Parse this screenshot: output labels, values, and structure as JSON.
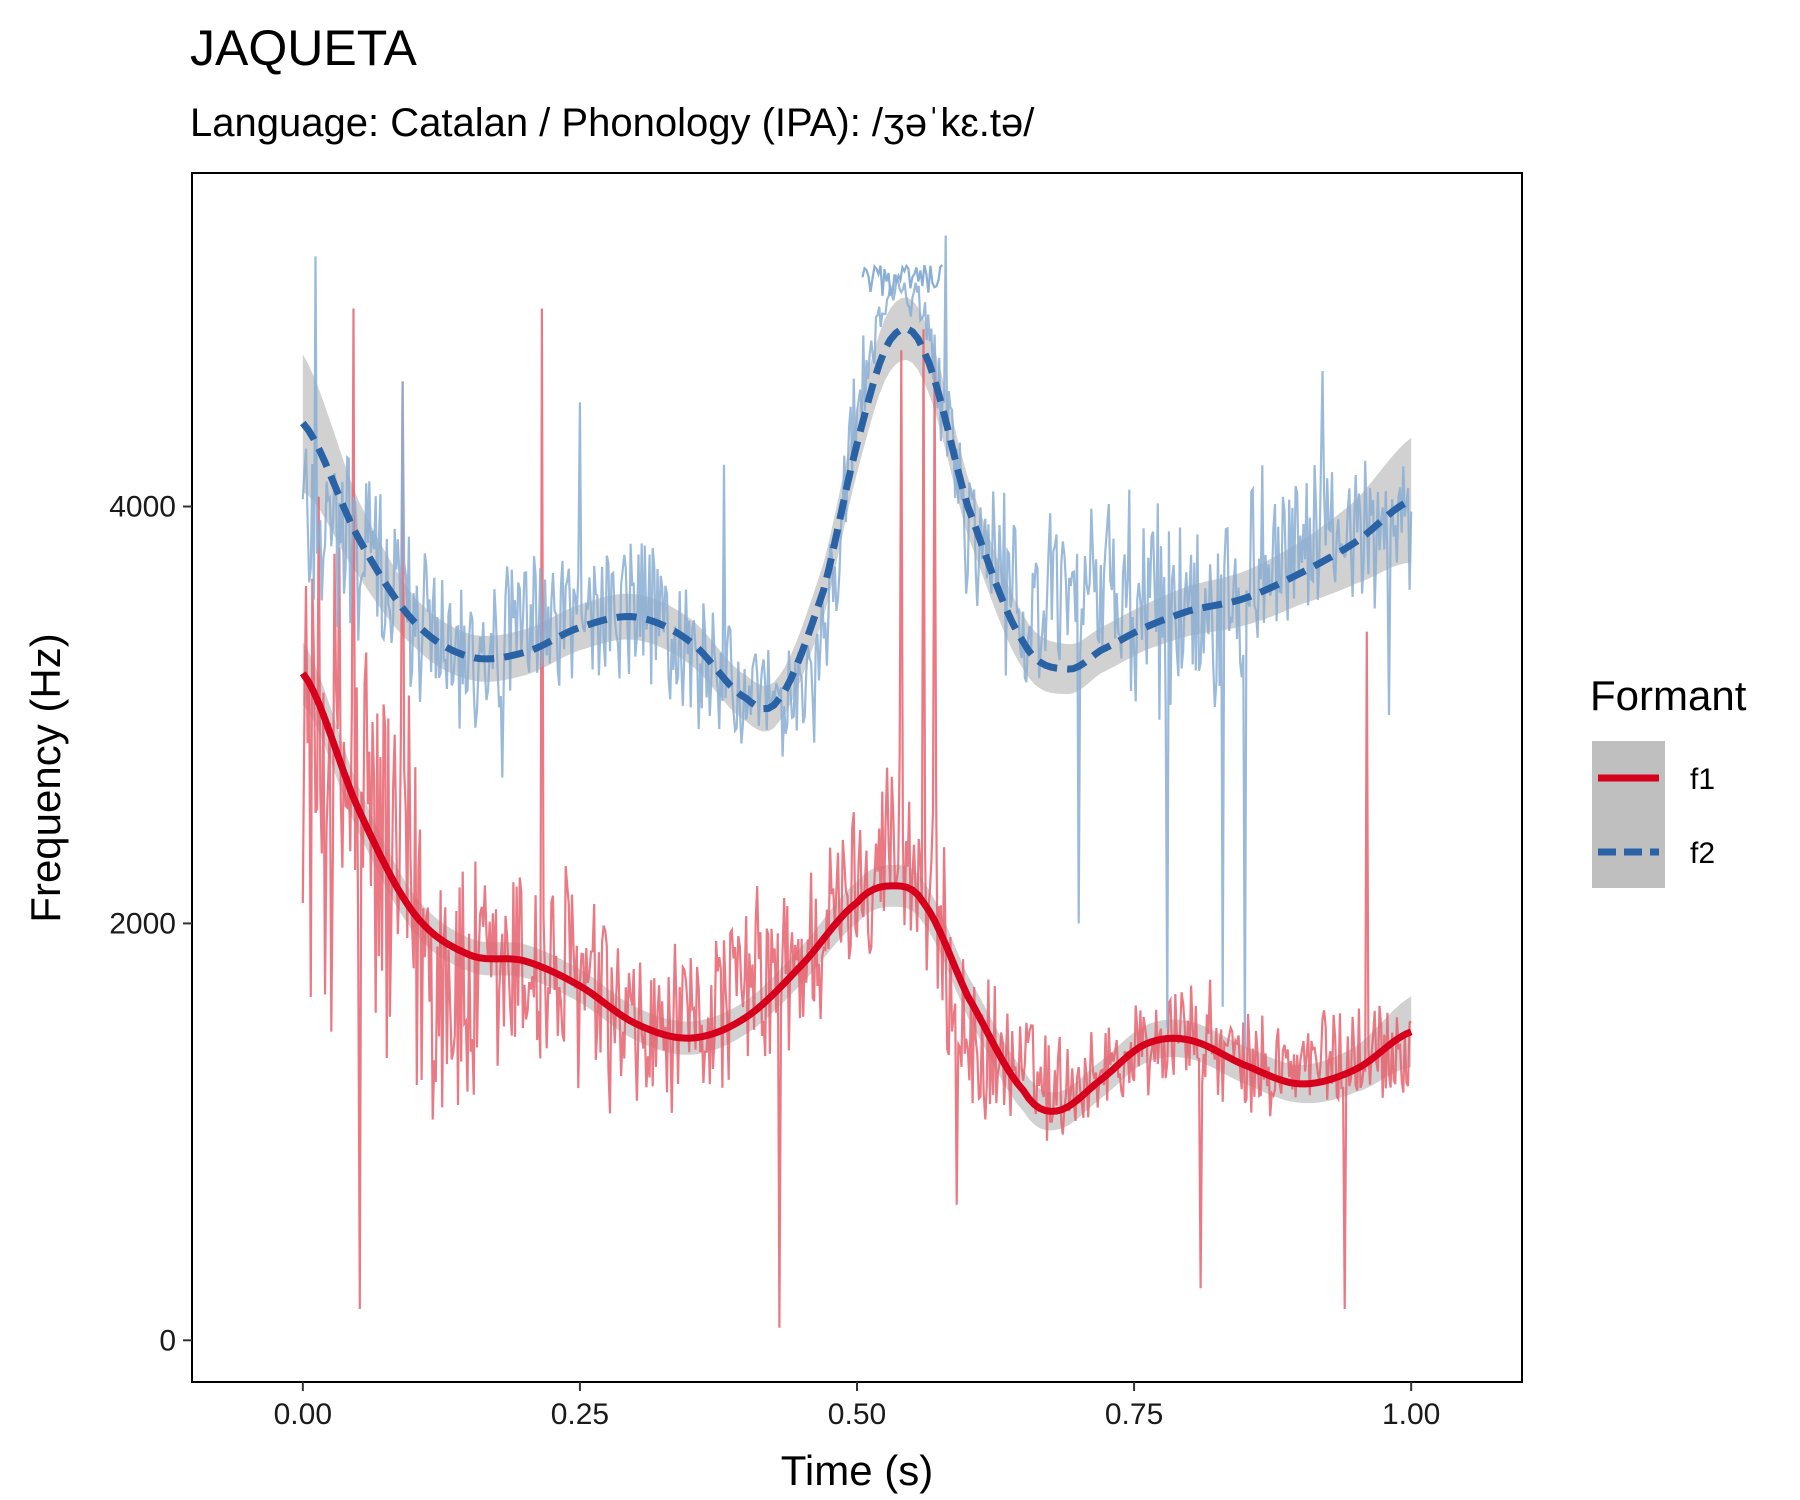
{
  "chart_data": {
    "type": "line",
    "title": "JAQUETA",
    "subtitle": "Language: Catalan / Phonology (IPA): /ʒəˈkɛ.tə/",
    "xlabel": "Time (s)",
    "ylabel": "Frequency (Hz)",
    "xlim": [
      -0.1,
      1.1
    ],
    "ylim": [
      -200,
      5600
    ],
    "x_ticks": [
      0.0,
      0.25,
      0.5,
      0.75,
      1.0
    ],
    "x_tick_labels": [
      "0.00",
      "0.25",
      "0.50",
      "0.75",
      "1.00"
    ],
    "y_ticks": [
      0,
      2000,
      4000
    ],
    "y_tick_labels": [
      "0",
      "2000",
      "4000"
    ],
    "grid": false,
    "legend": {
      "title": "Formant",
      "position": "right",
      "entries": [
        {
          "label": "f1",
          "color": "#d7001c",
          "dash": "solid"
        },
        {
          "label": "f2",
          "color": "#2a62a6",
          "dash": "dashed"
        }
      ]
    },
    "series": [
      {
        "name": "f1",
        "color": "#d7001c",
        "raw_color": "#e8616f",
        "smooth": {
          "x": [
            0.0,
            0.05,
            0.1,
            0.15,
            0.2,
            0.25,
            0.3,
            0.35,
            0.4,
            0.45,
            0.5,
            0.53,
            0.56,
            0.6,
            0.65,
            0.68,
            0.72,
            0.76,
            0.8,
            0.85,
            0.9,
            0.95,
            1.0
          ],
          "y": [
            3200,
            2550,
            2050,
            1850,
            1820,
            1700,
            1520,
            1450,
            1550,
            1800,
            2100,
            2180,
            2100,
            1650,
            1200,
            1100,
            1250,
            1420,
            1440,
            1320,
            1230,
            1300,
            1480
          ],
          "band": [
            150,
            110,
            90,
            80,
            80,
            80,
            80,
            80,
            80,
            90,
            100,
            100,
            100,
            100,
            100,
            90,
            90,
            90,
            90,
            90,
            90,
            110,
            170
          ]
        },
        "raw_anchors": {
          "x": [
            0.0,
            0.05,
            0.1,
            0.15,
            0.2,
            0.25,
            0.3,
            0.35,
            0.4,
            0.45,
            0.5,
            0.53,
            0.56,
            0.6,
            0.65,
            0.68,
            0.72,
            0.76,
            0.8,
            0.85,
            0.9,
            0.95,
            1.0
          ],
          "y": [
            2900,
            2600,
            2000,
            1600,
            1800,
            1700,
            1400,
            1500,
            1700,
            1800,
            2200,
            2400,
            2200,
            1400,
            1300,
            1200,
            1300,
            1400,
            1500,
            1300,
            1300,
            1400,
            1400
          ],
          "spread": [
            1500,
            1400,
            1200,
            800,
            700,
            650,
            550,
            450,
            500,
            550,
            450,
            600,
            700,
            450,
            350,
            300,
            280,
            300,
            320,
            300,
            300,
            320,
            300
          ],
          "spikes": [
            [
              0.045,
              4950
            ],
            [
              0.052,
              150
            ],
            [
              0.09,
              4600
            ],
            [
              0.215,
              4950
            ],
            [
              0.43,
              60
            ],
            [
              0.54,
              4750
            ],
            [
              0.56,
              4850
            ],
            [
              0.57,
              4650
            ],
            [
              0.96,
              3400
            ],
            [
              0.94,
              150
            ],
            [
              0.81,
              250
            ],
            [
              0.59,
              650
            ]
          ]
        }
      },
      {
        "name": "f2",
        "color": "#2a62a6",
        "raw_color": "#8aaed4",
        "smooth": {
          "x": [
            0.0,
            0.05,
            0.1,
            0.15,
            0.2,
            0.25,
            0.3,
            0.35,
            0.4,
            0.43,
            0.47,
            0.5,
            0.53,
            0.56,
            0.6,
            0.65,
            0.69,
            0.72,
            0.76,
            0.8,
            0.85,
            0.9,
            0.95,
            1.0
          ],
          "y": [
            4400,
            3850,
            3450,
            3280,
            3300,
            3420,
            3470,
            3350,
            3080,
            3080,
            3600,
            4300,
            4800,
            4750,
            4000,
            3350,
            3220,
            3310,
            3420,
            3500,
            3560,
            3680,
            3830,
            4030
          ],
          "band": [
            330,
            180,
            120,
            110,
            110,
            110,
            110,
            110,
            110,
            110,
            130,
            140,
            150,
            150,
            140,
            130,
            120,
            110,
            110,
            120,
            130,
            150,
            200,
            300
          ]
        },
        "raw_anchors": {
          "x": [
            0.0,
            0.05,
            0.1,
            0.15,
            0.2,
            0.25,
            0.3,
            0.35,
            0.4,
            0.43,
            0.47,
            0.5,
            0.53,
            0.56,
            0.6,
            0.65,
            0.69,
            0.72,
            0.76,
            0.8,
            0.85,
            0.9,
            0.95,
            1.0
          ],
          "y": [
            4000,
            3800,
            3500,
            3300,
            3400,
            3500,
            3500,
            3300,
            3100,
            3000,
            3300,
            4500,
            5050,
            4950,
            3900,
            3500,
            3500,
            3600,
            3500,
            3500,
            3600,
            3800,
            3900,
            3900
          ],
          "spread": [
            600,
            550,
            500,
            450,
            450,
            450,
            450,
            450,
            350,
            300,
            400,
            300,
            120,
            120,
            450,
            500,
            550,
            550,
            600,
            650,
            600,
            450,
            400,
            400
          ],
          "spikes": [
            [
              0.012,
              5200
            ],
            [
              0.09,
              4600
            ],
            [
              0.18,
              2700
            ],
            [
              0.25,
              4500
            ],
            [
              0.38,
              4200
            ],
            [
              0.58,
              5300
            ],
            [
              0.63,
              3700
            ],
            [
              0.7,
              2000
            ],
            [
              0.78,
              1500
            ],
            [
              0.83,
              1600
            ],
            [
              0.85,
              1400
            ],
            [
              0.92,
              4650
            ],
            [
              0.98,
              3000
            ]
          ]
        }
      }
    ]
  }
}
